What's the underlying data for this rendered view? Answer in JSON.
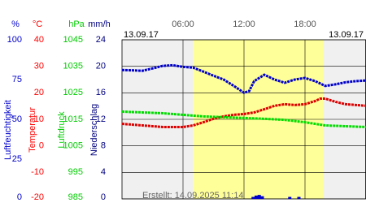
{
  "chart_data": {
    "type": "line",
    "xlim": [
      0,
      24
    ],
    "xticks": [
      {
        "value": 6,
        "label": "06:00"
      },
      {
        "value": 12,
        "label": "12:00"
      },
      {
        "value": 18,
        "label": "18:00"
      }
    ],
    "date_left": "13.09.17",
    "date_right": "13.09.17",
    "footer": "Erstellt: 14.09.2025 11:14",
    "daylight": [
      7.0,
      19.8
    ],
    "daylight_color": "#ffff99",
    "grid": true,
    "axes": [
      {
        "title": "Luftfeuchtigkeit",
        "unit": "%",
        "color": "#0000cc",
        "lim": [
          0,
          100
        ],
        "ticks": [
          0,
          25,
          50,
          75,
          100
        ]
      },
      {
        "title": "Temperatur",
        "unit": "°C",
        "color": "#ff0000",
        "lim": [
          -20,
          40
        ],
        "ticks": [
          -20,
          -10,
          0,
          10,
          20,
          30,
          40
        ]
      },
      {
        "title": "Luftdruck",
        "unit": "hPa",
        "color": "#00cc00",
        "lim": [
          985,
          1045
        ],
        "ticks": [
          985,
          995,
          1005,
          1015,
          1025,
          1035,
          1045
        ]
      },
      {
        "title": "Niederschlag",
        "unit": "mm/h",
        "color": "#000080",
        "lim": [
          0,
          24
        ],
        "ticks": [
          0,
          4,
          8,
          12,
          16,
          20,
          24
        ]
      }
    ],
    "series": [
      {
        "axis": 0,
        "color": "#0000cc",
        "x": [
          0,
          1,
          2,
          3,
          4,
          5,
          6,
          7,
          8,
          9,
          10,
          11,
          12,
          12.5,
          13,
          14,
          15,
          16,
          17,
          18,
          19,
          20,
          21,
          22,
          23,
          24
        ],
        "values": [
          81,
          80.8,
          80.5,
          82,
          83.6,
          84,
          83,
          82.5,
          80,
          77.4,
          75,
          71,
          66.7,
          67.7,
          74,
          78,
          75,
          73,
          75,
          76,
          74,
          71,
          72,
          73.3,
          74,
          74.4
        ]
      },
      {
        "axis": 1,
        "color": "#dd0000",
        "x": [
          0,
          1,
          2,
          3,
          4,
          5,
          6,
          7,
          8,
          9,
          10,
          11,
          12,
          13,
          14,
          15,
          16,
          17,
          18,
          19,
          19.5,
          20,
          21,
          22,
          23,
          24
        ],
        "values": [
          8.3,
          8.0,
          7.7,
          7.4,
          7.1,
          7.1,
          7.1,
          7.7,
          8.9,
          10.2,
          11.1,
          11.7,
          12,
          12.6,
          13.8,
          15.1,
          15.7,
          15.4,
          15.7,
          16.9,
          17.8,
          17.8,
          16.6,
          15.7,
          15.4,
          15.1
        ]
      },
      {
        "axis": 2,
        "color": "#00dd00",
        "x": [
          0,
          2,
          4,
          6,
          8,
          10,
          12,
          14,
          16,
          18,
          20,
          22,
          24
        ],
        "values": [
          1017.9,
          1017.6,
          1017.3,
          1016.7,
          1016.1,
          1015.8,
          1015.5,
          1015.2,
          1014.8,
          1013.9,
          1012.7,
          1012.4,
          1012.1
        ]
      }
    ],
    "precipitation": {
      "axis": 3,
      "color": "#0000cc",
      "x": [
        12.9,
        13.2,
        13.5,
        13.8,
        16.5,
        17.4
      ],
      "values": [
        0.3,
        0.5,
        0.6,
        0.4,
        0.3,
        0.3
      ]
    }
  }
}
